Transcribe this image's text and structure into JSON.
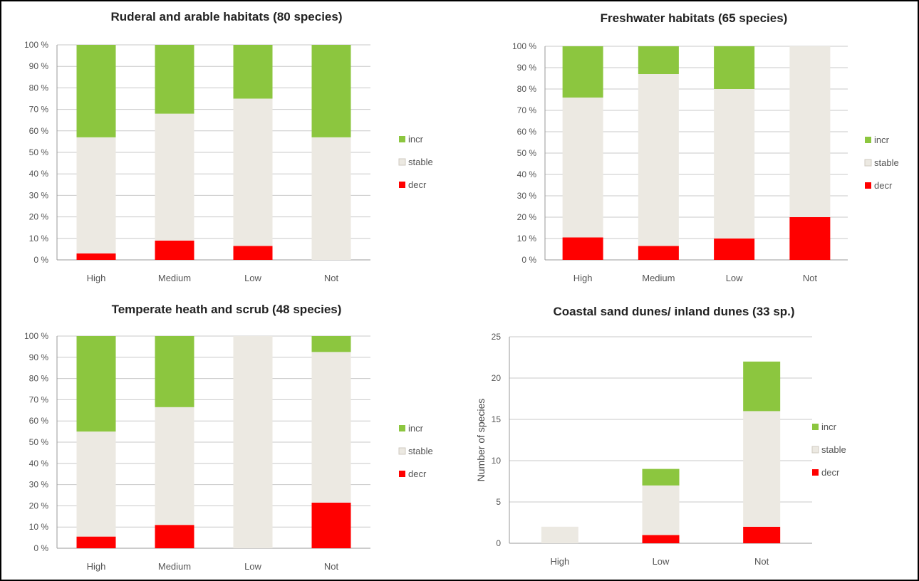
{
  "colors": {
    "incr": "#8cc63f",
    "stable": "#ece9e2",
    "decr": "#ff0000"
  },
  "chart_data": [
    {
      "type": "bar",
      "stacked": true,
      "title": "Ruderal and arable habitats (80 species)",
      "categories": [
        "High",
        "Medium",
        "Low",
        "Not"
      ],
      "ylabel": "",
      "ylim": [
        0,
        100
      ],
      "yticks": [
        "0 %",
        "10 %",
        "20 %",
        "30 %",
        "40 %",
        "50 %",
        "60 %",
        "70 %",
        "80 %",
        "90 %",
        "100 %"
      ],
      "legend_position": "right",
      "series": [
        {
          "name": "decr",
          "values": [
            3,
            9,
            6.5,
            0
          ]
        },
        {
          "name": "stable",
          "values": [
            54,
            59,
            68.5,
            57
          ]
        },
        {
          "name": "incr",
          "values": [
            43,
            32,
            25,
            43
          ]
        }
      ],
      "legend": [
        "incr",
        "stable",
        "decr"
      ]
    },
    {
      "type": "bar",
      "stacked": true,
      "title": "Freshwater habitats (65 species)",
      "categories": [
        "High",
        "Medium",
        "Low",
        "Not"
      ],
      "ylabel": "",
      "ylim": [
        0,
        100
      ],
      "yticks": [
        "0 %",
        "10 %",
        "20 %",
        "30 %",
        "40 %",
        "50 %",
        "60 %",
        "70 %",
        "80 %",
        "90 %",
        "100 %"
      ],
      "legend_position": "right",
      "series": [
        {
          "name": "decr",
          "values": [
            10.5,
            6.5,
            10,
            20
          ]
        },
        {
          "name": "stable",
          "values": [
            65.5,
            80.5,
            70,
            80
          ]
        },
        {
          "name": "incr",
          "values": [
            24,
            13,
            20,
            0
          ]
        }
      ],
      "legend": [
        "incr",
        "stable",
        "decr"
      ]
    },
    {
      "type": "bar",
      "stacked": true,
      "title": "Temperate heath and scrub (48 species)",
      "categories": [
        "High",
        "Medium",
        "Low",
        "Not"
      ],
      "ylabel": "",
      "ylim": [
        0,
        100
      ],
      "yticks": [
        "0 %",
        "10 %",
        "20 %",
        "30 %",
        "40 %",
        "50 %",
        "60 %",
        "70 %",
        "80 %",
        "90 %",
        "100 %"
      ],
      "legend_position": "right",
      "series": [
        {
          "name": "decr",
          "values": [
            5.5,
            11,
            0,
            21.5
          ]
        },
        {
          "name": "stable",
          "values": [
            49.5,
            55.5,
            100,
            71
          ]
        },
        {
          "name": "incr",
          "values": [
            45,
            33.5,
            0,
            7.5
          ]
        }
      ],
      "legend": [
        "incr",
        "stable",
        "decr"
      ]
    },
    {
      "type": "bar",
      "stacked": true,
      "title": "Coastal sand dunes/ inland dunes (33 sp.)",
      "categories": [
        "High",
        "Low",
        "Not"
      ],
      "ylabel": "Number of species",
      "ylim": [
        0,
        25
      ],
      "yticks": [
        "0",
        "5",
        "10",
        "15",
        "20",
        "25"
      ],
      "legend_position": "right",
      "series": [
        {
          "name": "decr",
          "values": [
            0,
            1,
            2
          ]
        },
        {
          "name": "stable",
          "values": [
            2,
            6,
            14
          ]
        },
        {
          "name": "incr",
          "values": [
            0,
            2,
            6
          ]
        }
      ],
      "legend": [
        "incr",
        "stable",
        "decr"
      ]
    }
  ]
}
